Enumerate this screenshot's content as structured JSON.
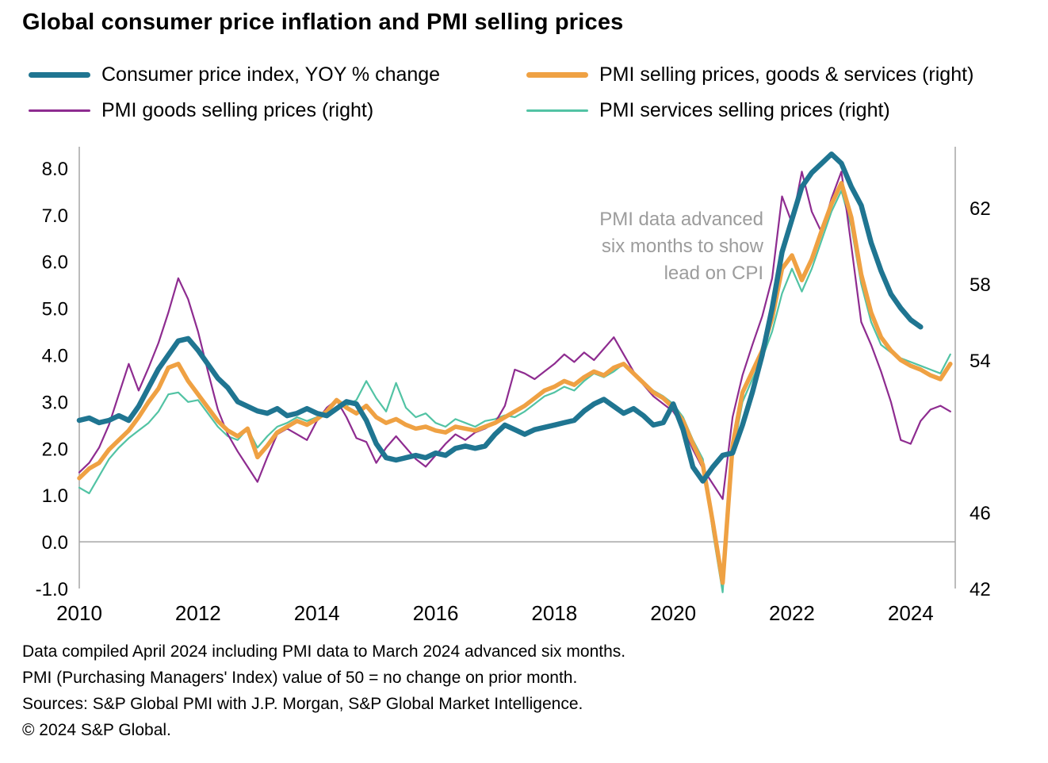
{
  "title": "Global consumer price inflation and PMI selling prices",
  "annotation": {
    "lines": [
      "PMI data advanced",
      "six months to show",
      "lead on CPI"
    ],
    "color": "#9C9C9C"
  },
  "footer": {
    "lines": [
      "Data compiled April 2024 including PMI data to March 2024 advanced six months.",
      "PMI (Purchasing Managers' Index) value of 50 = no change on prior month.",
      "Sources: S&P Global PMI with J.P. Morgan, S&P Global Market Intelligence.",
      "© 2024 S&P Global."
    ]
  },
  "chart_data": {
    "type": "line",
    "title": "Global consumer price inflation and PMI selling prices",
    "x_axis": {
      "min": 2010,
      "max": 2024.75,
      "ticks": [
        2010,
        2012,
        2014,
        2016,
        2018,
        2020,
        2022,
        2024
      ]
    },
    "left_axis": {
      "min": -1,
      "max": 8.4,
      "ticks": [
        8,
        7,
        6,
        5,
        4,
        3,
        2,
        1,
        0,
        -1
      ]
    },
    "right_axis": {
      "min": 42,
      "max": 65,
      "ticks": [
        62,
        58,
        54,
        46,
        42
      ]
    },
    "axis_color": "#A6A6A6",
    "grid": "zero-line-only",
    "legend_position": "top",
    "series": [
      {
        "id": "cpi",
        "name": "Consumer price index, YOY % change",
        "axis": "left",
        "color": "#1F7591",
        "stroke_width": 6.5,
        "x_start": 2010,
        "x_step": 0.16667,
        "values": [
          2.6,
          2.65,
          2.55,
          2.6,
          2.7,
          2.6,
          2.9,
          3.3,
          3.7,
          4.0,
          4.3,
          4.35,
          4.1,
          3.8,
          3.5,
          3.3,
          3.0,
          2.9,
          2.8,
          2.75,
          2.85,
          2.7,
          2.75,
          2.85,
          2.75,
          2.7,
          2.85,
          3.0,
          2.95,
          2.6,
          2.1,
          1.8,
          1.75,
          1.8,
          1.85,
          1.8,
          1.9,
          1.85,
          2.0,
          2.05,
          2.0,
          2.05,
          2.3,
          2.5,
          2.4,
          2.3,
          2.4,
          2.45,
          2.5,
          2.55,
          2.6,
          2.8,
          2.95,
          3.05,
          2.9,
          2.75,
          2.85,
          2.7,
          2.5,
          2.55,
          2.95,
          2.4,
          1.6,
          1.3,
          1.6,
          1.85,
          1.9,
          2.5,
          3.2,
          4.0,
          5.0,
          6.2,
          6.9,
          7.6,
          7.9,
          8.1,
          8.3,
          8.1,
          7.6,
          7.2,
          6.4,
          5.8,
          5.3,
          5.0,
          4.75,
          4.6
        ]
      },
      {
        "id": "pmi-composite",
        "name": "PMI selling prices, goods & services (right)",
        "axis": "right",
        "color": "#EFA143",
        "stroke_width": 5.5,
        "x_start": 2010,
        "x_step": 0.16667,
        "values": [
          47.8,
          48.3,
          48.6,
          49.3,
          49.8,
          50.3,
          51.0,
          51.8,
          52.5,
          53.6,
          53.8,
          52.9,
          52.2,
          51.5,
          50.8,
          50.3,
          50.0,
          50.4,
          48.9,
          49.5,
          50.2,
          50.5,
          50.8,
          50.6,
          50.9,
          51.3,
          51.9,
          51.5,
          51.2,
          51.6,
          51.0,
          50.7,
          50.9,
          50.6,
          50.4,
          50.5,
          50.3,
          50.2,
          50.5,
          50.4,
          50.3,
          50.5,
          50.7,
          51.0,
          51.3,
          51.6,
          52.0,
          52.4,
          52.6,
          52.9,
          52.7,
          53.1,
          53.4,
          53.2,
          53.6,
          53.8,
          53.3,
          52.8,
          52.3,
          52.0,
          51.5,
          50.8,
          49.6,
          48.5,
          45.5,
          42.3,
          49.5,
          52.3,
          53.4,
          54.5,
          56.2,
          58.8,
          59.5,
          58.2,
          59.3,
          60.8,
          62.2,
          63.3,
          61.5,
          58.5,
          56.5,
          55.2,
          54.5,
          54.0,
          53.7,
          53.5,
          53.2,
          53.0,
          53.8
        ]
      },
      {
        "id": "pmi-goods",
        "name": "PMI goods selling prices (right)",
        "axis": "right",
        "color": "#8E2C90",
        "stroke_width": 2.2,
        "x_start": 2010,
        "x_step": 0.16667,
        "values": [
          48.1,
          48.6,
          49.4,
          50.6,
          52.2,
          53.8,
          52.4,
          53.6,
          54.9,
          56.5,
          58.3,
          57.2,
          55.5,
          53.4,
          51.4,
          50.1,
          49.2,
          48.4,
          47.6,
          48.9,
          50.1,
          50.4,
          50.1,
          49.8,
          50.8,
          51.5,
          51.9,
          51.0,
          49.9,
          49.7,
          48.6,
          49.4,
          50.0,
          49.4,
          48.8,
          48.4,
          49.0,
          49.6,
          50.1,
          49.8,
          50.2,
          50.4,
          50.7,
          51.6,
          53.5,
          53.3,
          53.0,
          53.4,
          53.8,
          54.3,
          53.9,
          54.4,
          54.0,
          54.6,
          55.2,
          54.3,
          53.4,
          52.7,
          52.1,
          51.7,
          51.3,
          50.5,
          49.3,
          48.3,
          47.5,
          46.7,
          51.0,
          53.2,
          54.8,
          56.3,
          58.3,
          62.6,
          61.2,
          63.9,
          61.8,
          60.7,
          62.5,
          63.9,
          60.0,
          56.0,
          54.8,
          53.4,
          51.8,
          49.8,
          49.6,
          50.8,
          51.4,
          51.6,
          51.3
        ]
      },
      {
        "id": "pmi-services",
        "name": "PMI services selling prices (right)",
        "axis": "right",
        "color": "#52C3A4",
        "stroke_width": 2.2,
        "x_start": 2010,
        "x_step": 0.16667,
        "values": [
          47.3,
          47.0,
          47.9,
          48.8,
          49.4,
          49.9,
          50.3,
          50.7,
          51.3,
          52.2,
          52.3,
          51.8,
          51.9,
          51.2,
          50.5,
          50.0,
          49.8,
          50.4,
          49.4,
          50.0,
          50.5,
          50.7,
          51.0,
          50.8,
          51.0,
          51.4,
          51.8,
          51.6,
          51.9,
          52.9,
          52.0,
          51.3,
          52.8,
          51.5,
          51.0,
          51.2,
          50.7,
          50.5,
          50.9,
          50.7,
          50.5,
          50.8,
          50.9,
          51.1,
          51.0,
          51.3,
          51.7,
          52.1,
          52.3,
          52.6,
          52.4,
          52.9,
          53.3,
          53.1,
          53.4,
          53.8,
          53.3,
          52.8,
          52.4,
          52.1,
          51.7,
          51.0,
          49.8,
          48.8,
          45.0,
          41.8,
          49.0,
          51.8,
          53.0,
          54.1,
          55.5,
          57.5,
          58.8,
          57.6,
          58.8,
          60.3,
          61.8,
          62.9,
          61.0,
          58.0,
          56.0,
          54.8,
          54.4,
          54.1,
          53.9,
          53.7,
          53.5,
          53.3,
          54.3
        ]
      }
    ]
  }
}
